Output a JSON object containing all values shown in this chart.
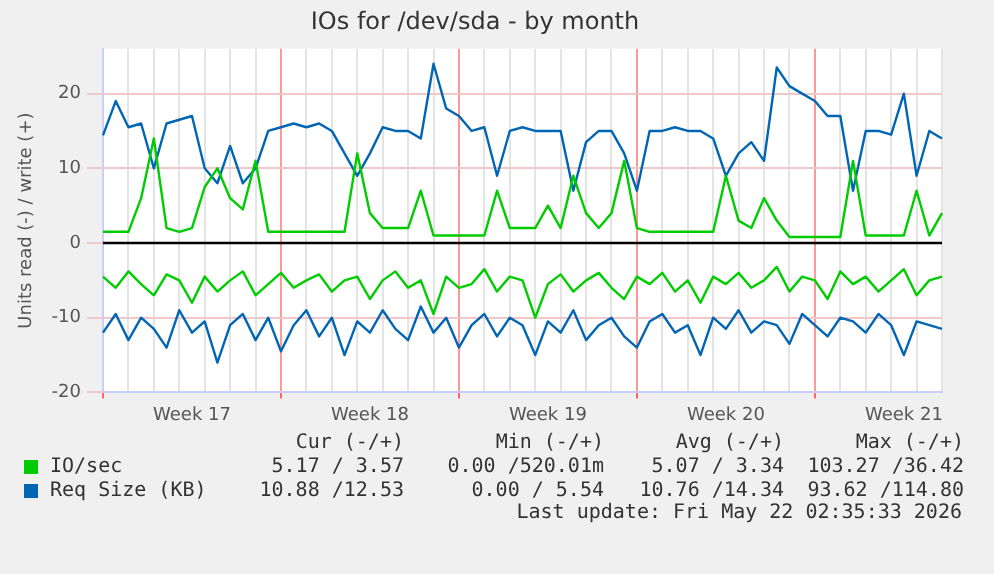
{
  "chart_data": {
    "type": "line",
    "title": "IOs for /dev/sda - by month",
    "ylabel": "Units read (-) / write (+)",
    "categories": [
      null,
      null,
      null,
      null,
      null,
      null,
      null,
      "Week 17",
      null,
      null,
      null,
      null,
      null,
      null,
      null,
      null,
      null,
      null,
      null,
      null,
      null,
      "Week 18",
      null,
      null,
      null,
      null,
      null,
      null,
      null,
      null,
      null,
      null,
      null,
      null,
      null,
      "Week 19",
      null,
      null,
      null,
      null,
      null,
      null,
      null,
      null,
      null,
      null,
      null,
      null,
      null,
      "Week 20",
      null,
      null,
      null,
      null,
      null,
      null,
      null,
      null,
      null,
      null,
      null,
      null,
      null,
      "Week 21",
      null,
      null,
      null
    ],
    "ylim": [
      -20,
      26
    ],
    "yticks": [
      -20,
      -10,
      0,
      10,
      20
    ],
    "grid": true,
    "legend": "bottom",
    "marker": "none",
    "line_style": "solid",
    "series": [
      {
        "name": "IO/sec",
        "color": "#00cc00",
        "values": [
          1.5,
          1.5,
          1.5,
          6,
          14,
          2,
          1.5,
          2,
          7.5,
          10,
          6,
          4.5,
          11,
          1.5,
          1.5,
          1.5,
          1.5,
          1.5,
          1.5,
          1.5,
          12,
          4,
          2,
          2,
          2,
          7,
          1,
          1,
          1,
          1,
          1,
          7,
          2,
          2,
          2,
          5,
          2,
          9,
          4,
          2,
          4,
          11,
          2,
          1.5,
          1.5,
          1.5,
          1.5,
          1.5,
          1.5,
          9,
          3,
          2,
          6,
          3,
          0.8,
          0.8,
          0.8,
          0.8,
          0.8,
          11,
          1,
          1,
          1,
          1,
          7,
          1,
          4
        ]
      },
      {
        "color": "#00cc00",
        "values": [
          -4.5,
          -6,
          -3.8,
          -5.5,
          -7,
          -4.2,
          -5,
          -8,
          -4.5,
          -6.5,
          -5,
          -3.8,
          -7,
          -5.5,
          -4,
          -6,
          -5,
          -4.2,
          -6.5,
          -5,
          -4.5,
          -7.5,
          -5,
          -3.8,
          -6,
          -5,
          -9.5,
          -4.5,
          -6,
          -5.5,
          -3.5,
          -6.5,
          -4.5,
          -5,
          -10,
          -5.5,
          -4.2,
          -6.5,
          -5,
          -4,
          -6,
          -7.5,
          -4.5,
          -5.5,
          -4,
          -6.5,
          -5,
          -8,
          -4.5,
          -5.5,
          -4,
          -6,
          -5,
          -3.2,
          -6.5,
          -4.5,
          -5,
          -7.5,
          -3.8,
          -5.5,
          -4.5,
          -6.5,
          -5,
          -3.5,
          -7,
          -5,
          -4.5
        ]
      },
      {
        "name": "Req Size (KB)",
        "color": "#0066b3",
        "values": [
          14.4,
          19,
          15.5,
          16,
          10,
          16,
          16.5,
          17,
          10,
          8,
          13,
          8,
          10,
          15,
          15.5,
          16,
          15.5,
          16,
          15,
          12,
          9,
          12,
          15.5,
          15,
          15,
          14,
          24,
          18,
          17,
          15,
          15.5,
          9,
          15,
          15.5,
          15,
          15,
          15,
          7,
          13.5,
          15,
          15,
          12,
          7,
          15,
          15,
          15.5,
          15,
          15,
          14,
          9,
          12,
          13.5,
          11,
          23.5,
          21,
          20,
          19,
          17,
          17,
          7,
          15,
          15,
          14.5,
          20,
          9,
          15,
          14
        ]
      },
      {
        "color": "#0066b3",
        "values": [
          -12,
          -9.5,
          -13,
          -10,
          -11.5,
          -14,
          -9,
          -12,
          -10.5,
          -16,
          -11,
          -9.5,
          -13,
          -10,
          -14.5,
          -11,
          -9,
          -12.5,
          -10,
          -15,
          -10.5,
          -12,
          -9,
          -11.5,
          -13,
          -8.5,
          -12,
          -10,
          -14,
          -11,
          -9.5,
          -12.5,
          -10,
          -11,
          -15,
          -10.5,
          -12,
          -9,
          -13,
          -11,
          -10,
          -12.5,
          -14,
          -10.5,
          -9.5,
          -12,
          -11,
          -15,
          -10,
          -11.5,
          -9,
          -12,
          -10.5,
          -11,
          -13.5,
          -9.5,
          -11,
          -12.5,
          -10,
          -10.5,
          -12,
          -9.5,
          -11,
          -15,
          -10.5,
          -11,
          -11.5
        ]
      }
    ],
    "ref_lines": [
      {
        "axis": "y",
        "value": 0,
        "color": "#000000"
      }
    ],
    "annotations": [
      "Cur (-/+)",
      "Min (-/+)",
      "Avg (-/+)",
      "Max (-/+)",
      "5.17 / 3.57",
      "0.00 /520.01m",
      "5.07 / 3.34",
      "103.27 /36.42",
      "10.88 /12.53",
      "0.00 / 5.54",
      "10.76 /14.34",
      "93.62 /114.80",
      "Last update: Fri May 22 02:35:33 2026"
    ]
  }
}
